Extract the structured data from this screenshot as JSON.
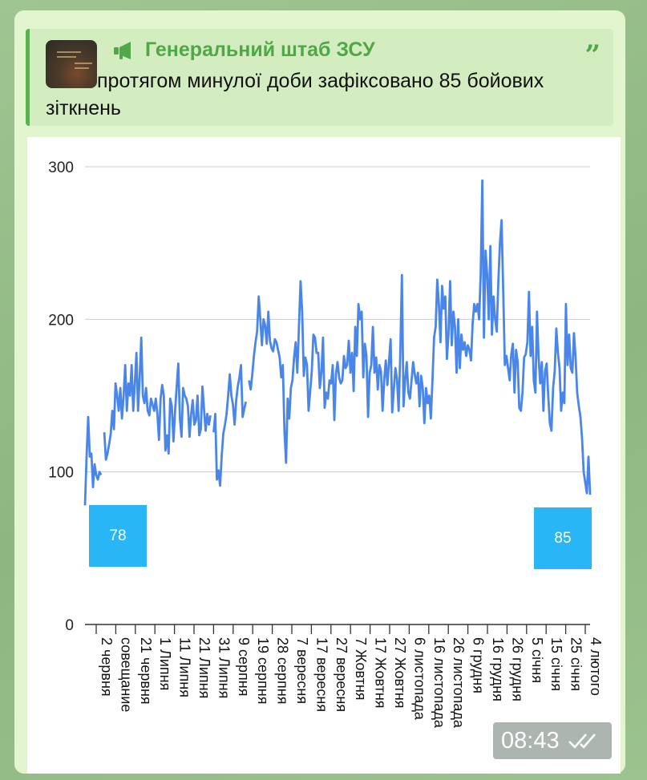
{
  "message": {
    "channel_name": "Генеральний штаб ЗСУ",
    "reply_text": "протягом минулої доби зафіксовано 85 бойових зіткнень",
    "time": "08:43",
    "icons": [
      "megaphone-icon",
      "quote-icon",
      "double-check-icon"
    ],
    "accent_color": "#4fa847"
  },
  "chart_data": {
    "type": "line",
    "title": "",
    "xlabel": "",
    "ylabel": "",
    "ylim": [
      0,
      300
    ],
    "yticks": [
      0,
      100,
      200,
      300
    ],
    "grid": true,
    "line_color": "#4a86e8",
    "x_tick_labels": [
      "2 червня",
      "совещание",
      "21 червня",
      "1 Липня",
      "11 Липня",
      "21 Липня",
      "31 Липня",
      "9 серпня",
      "19 серпня",
      "28 серпня",
      "7 вересня",
      "17 вересня",
      "27 вересня",
      "7 Жовтня",
      "17 Жовтня",
      "27 Жовтня",
      "6 листопада",
      "16 листопада",
      "26 листопада",
      "6 грудня",
      "16 грудня",
      "26 грудня",
      "5 січня",
      "15 січня",
      "25 січня",
      "4 лютого"
    ],
    "series": [
      {
        "values": [
          78,
          110,
          136,
          110,
          112,
          90,
          105,
          98,
          95,
          100,
          98,
          null,
          126,
          108,
          112,
          118,
          125,
          140,
          128,
          158,
          150,
          140,
          155,
          135,
          150,
          170,
          140,
          158,
          150,
          170,
          140,
          158,
          178,
          140,
          162,
          188,
          150,
          145,
          155,
          140,
          137,
          148,
          144,
          140,
          148,
          138,
          121,
          148,
          157,
          150,
          114,
          124,
          112,
          148,
          143,
          120,
          140,
          156,
          171,
          135,
          123,
          155,
          150,
          148,
          143,
          123,
          138,
          147,
          131,
          134,
          150,
          124,
          128,
          156,
          141,
          127,
          138,
          131,
          137,
          null,
          126,
          138,
          95,
          101,
          91,
          110,
          125,
          131,
          138,
          150,
          164,
          150,
          144,
          131,
          147,
          156,
          162,
          170,
          136,
          141,
          146,
          null,
          160,
          154,
          164,
          176,
          185,
          192,
          215,
          200,
          183,
          200,
          196,
          184,
          205,
          186,
          181,
          179,
          187,
          185,
          180,
          175,
          162,
          170,
          127,
          106,
          148,
          135,
          155,
          160,
          175,
          185,
          165,
          194,
          225,
          205,
          163,
          175,
          170,
          140,
          153,
          166,
          190,
          188,
          178,
          178,
          155,
          165,
          188,
          142,
          152,
          148,
          160,
          158,
          170,
          134,
          164,
          172,
          162,
          158,
          160,
          176,
          168,
          170,
          186,
          165,
          178,
          153,
          195,
          176,
          210,
          200,
          205,
          162,
          184,
          176,
          136,
          165,
          170,
          195,
          165,
          175,
          154,
          170,
          166,
          140,
          160,
          173,
          157,
          172,
          187,
          139,
          154,
          168,
          161,
          140,
          176,
          229,
          143,
          160,
          172,
          152,
          148,
          160,
          172,
          164,
          158,
          165,
          143,
          163,
          155,
          132,
          155,
          145,
          150,
          135,
          160,
          188,
          195,
          226,
          210,
          185,
          222,
          207,
          215,
          174,
          190,
          225,
          183,
          205,
          195,
          165,
          200,
          168,
          190,
          180,
          185,
          176,
          183,
          180,
          173,
          197,
          210,
          205,
          210,
          200,
          230,
          291,
          188,
          245,
          230,
          200,
          248,
          190,
          215,
          200,
          192,
          225,
          250,
          265,
          218,
          170,
          176,
          168,
          160,
          177,
          184,
          152,
          180,
          172,
          142,
          140,
          152,
          175,
          177,
          185,
          218,
          176,
          195,
          160,
          152,
          205,
          175,
          158,
          172,
          140,
          166,
          171,
          150,
          132,
          127,
          155,
          166,
          194,
          178,
          168,
          140,
          152,
          145,
          210,
          170,
          190,
          168,
          165,
          191,
          175,
          152,
          143,
          136,
          122,
          100,
          93,
          86,
          110,
          85
        ]
      }
    ],
    "annotations": [
      {
        "label": "78",
        "x_index": 0,
        "value": 78
      },
      {
        "label": "85",
        "x_index": 309,
        "value": 85
      }
    ]
  }
}
